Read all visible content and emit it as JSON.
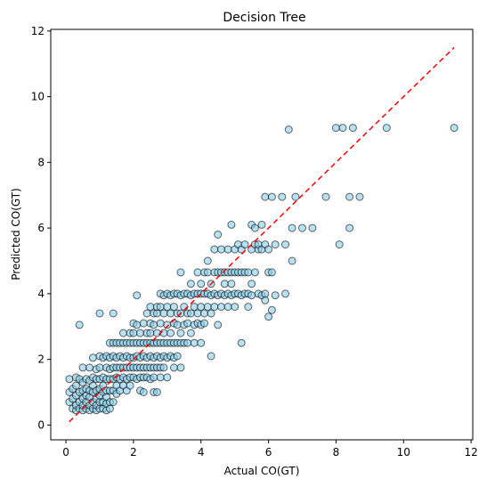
{
  "chart_data": {
    "type": "scatter",
    "title": "Decision Tree",
    "xlabel": "Actual CO(GT)",
    "ylabel": "Predicted CO(GT)",
    "xlim": [
      -0.45,
      12.05
    ],
    "ylim": [
      -0.45,
      12.05
    ],
    "xticks": [
      0,
      2,
      4,
      6,
      8,
      10,
      12
    ],
    "yticks": [
      0,
      2,
      4,
      6,
      8,
      10,
      12
    ],
    "grid": false,
    "legend": "none",
    "point_color": "#87ceeb",
    "point_edge_color": "#000000",
    "point_alpha": 0.6,
    "reference_line": {
      "x": [
        0.1,
        11.5
      ],
      "y": [
        0.1,
        11.5
      ],
      "color": "#ff0000",
      "style": "dashed"
    },
    "series": [
      {
        "points": [
          [
            0.1,
            0.7
          ],
          [
            0.1,
            1.0
          ],
          [
            0.1,
            1.4
          ],
          [
            0.2,
            0.5
          ],
          [
            0.2,
            0.8
          ],
          [
            0.2,
            1.1
          ],
          [
            0.3,
            0.45
          ],
          [
            0.3,
            0.6
          ],
          [
            0.3,
            0.9
          ],
          [
            0.3,
            1.2
          ],
          [
            0.3,
            1.45
          ],
          [
            0.4,
            0.5
          ],
          [
            0.4,
            0.7
          ],
          [
            0.4,
            1.0
          ],
          [
            0.4,
            1.4
          ],
          [
            0.4,
            3.05
          ],
          [
            0.5,
            0.45
          ],
          [
            0.5,
            0.6
          ],
          [
            0.5,
            0.8
          ],
          [
            0.5,
            1.05
          ],
          [
            0.5,
            1.3
          ],
          [
            0.5,
            1.75
          ],
          [
            0.6,
            0.5
          ],
          [
            0.6,
            0.7
          ],
          [
            0.6,
            0.9
          ],
          [
            0.6,
            1.1
          ],
          [
            0.6,
            1.4
          ],
          [
            0.7,
            0.45
          ],
          [
            0.7,
            0.6
          ],
          [
            0.7,
            0.85
          ],
          [
            0.7,
            1.05
          ],
          [
            0.7,
            1.35
          ],
          [
            0.7,
            1.75
          ],
          [
            0.8,
            0.5
          ],
          [
            0.8,
            0.7
          ],
          [
            0.8,
            1.0
          ],
          [
            0.8,
            1.2
          ],
          [
            0.8,
            1.45
          ],
          [
            0.8,
            2.05
          ],
          [
            0.9,
            0.45
          ],
          [
            0.9,
            0.6
          ],
          [
            0.9,
            0.8
          ],
          [
            0.9,
            1.05
          ],
          [
            0.9,
            1.4
          ],
          [
            0.9,
            1.7
          ],
          [
            1.0,
            0.5
          ],
          [
            1.0,
            0.7
          ],
          [
            1.0,
            0.9
          ],
          [
            1.0,
            1.1
          ],
          [
            1.0,
            1.4
          ],
          [
            1.0,
            1.75
          ],
          [
            1.0,
            2.1
          ],
          [
            1.0,
            3.4
          ],
          [
            1.1,
            0.5
          ],
          [
            1.1,
            0.7
          ],
          [
            1.1,
            1.0
          ],
          [
            1.1,
            1.2
          ],
          [
            1.1,
            1.45
          ],
          [
            1.1,
            2.05
          ],
          [
            1.2,
            0.45
          ],
          [
            1.2,
            0.65
          ],
          [
            1.2,
            0.85
          ],
          [
            1.2,
            1.05
          ],
          [
            1.2,
            1.4
          ],
          [
            1.2,
            1.75
          ],
          [
            1.2,
            2.1
          ],
          [
            1.3,
            0.5
          ],
          [
            1.3,
            0.7
          ],
          [
            1.3,
            1.05
          ],
          [
            1.3,
            1.4
          ],
          [
            1.3,
            1.7
          ],
          [
            1.3,
            2.05
          ],
          [
            1.3,
            2.5
          ],
          [
            1.4,
            0.7
          ],
          [
            1.4,
            1.05
          ],
          [
            1.4,
            1.4
          ],
          [
            1.4,
            1.75
          ],
          [
            1.4,
            2.1
          ],
          [
            1.4,
            2.5
          ],
          [
            1.4,
            3.4
          ],
          [
            1.5,
            0.95
          ],
          [
            1.5,
            1.2
          ],
          [
            1.5,
            1.45
          ],
          [
            1.5,
            1.75
          ],
          [
            1.5,
            2.05
          ],
          [
            1.5,
            2.5
          ],
          [
            1.6,
            1.05
          ],
          [
            1.6,
            1.4
          ],
          [
            1.6,
            1.75
          ],
          [
            1.6,
            2.1
          ],
          [
            1.6,
            2.5
          ],
          [
            1.7,
            1.2
          ],
          [
            1.7,
            1.45
          ],
          [
            1.7,
            1.75
          ],
          [
            1.7,
            2.05
          ],
          [
            1.7,
            2.5
          ],
          [
            1.7,
            2.8
          ],
          [
            1.8,
            1.05
          ],
          [
            1.8,
            1.4
          ],
          [
            1.8,
            1.75
          ],
          [
            1.8,
            2.1
          ],
          [
            1.8,
            2.5
          ],
          [
            1.9,
            1.2
          ],
          [
            1.9,
            1.45
          ],
          [
            1.9,
            1.75
          ],
          [
            1.9,
            2.05
          ],
          [
            1.9,
            2.5
          ],
          [
            1.9,
            2.8
          ],
          [
            2.0,
            1.45
          ],
          [
            2.0,
            1.75
          ],
          [
            2.0,
            2.05
          ],
          [
            2.0,
            2.5
          ],
          [
            2.0,
            2.8
          ],
          [
            2.0,
            3.1
          ],
          [
            2.1,
            1.4
          ],
          [
            2.1,
            1.75
          ],
          [
            2.1,
            2.1
          ],
          [
            2.1,
            2.5
          ],
          [
            2.1,
            3.05
          ],
          [
            2.1,
            3.95
          ],
          [
            2.2,
            1.05
          ],
          [
            2.2,
            1.45
          ],
          [
            2.2,
            1.75
          ],
          [
            2.2,
            2.05
          ],
          [
            2.2,
            2.5
          ],
          [
            2.2,
            2.8
          ],
          [
            2.3,
            1.0
          ],
          [
            2.3,
            1.45
          ],
          [
            2.3,
            1.75
          ],
          [
            2.3,
            2.1
          ],
          [
            2.3,
            2.5
          ],
          [
            2.3,
            3.1
          ],
          [
            2.4,
            1.45
          ],
          [
            2.4,
            1.75
          ],
          [
            2.4,
            2.05
          ],
          [
            2.4,
            2.5
          ],
          [
            2.4,
            2.8
          ],
          [
            2.4,
            3.4
          ],
          [
            2.5,
            1.4
          ],
          [
            2.5,
            1.75
          ],
          [
            2.5,
            2.1
          ],
          [
            2.5,
            2.5
          ],
          [
            2.5,
            2.8
          ],
          [
            2.5,
            3.1
          ],
          [
            2.5,
            3.6
          ],
          [
            2.6,
            1.0
          ],
          [
            2.6,
            1.45
          ],
          [
            2.6,
            1.75
          ],
          [
            2.6,
            2.05
          ],
          [
            2.6,
            2.5
          ],
          [
            2.6,
            3.05
          ],
          [
            2.6,
            3.4
          ],
          [
            2.7,
            1.0
          ],
          [
            2.7,
            1.75
          ],
          [
            2.7,
            2.1
          ],
          [
            2.7,
            2.5
          ],
          [
            2.7,
            2.8
          ],
          [
            2.7,
            3.4
          ],
          [
            2.7,
            3.6
          ],
          [
            2.8,
            1.45
          ],
          [
            2.8,
            1.75
          ],
          [
            2.8,
            2.05
          ],
          [
            2.8,
            2.5
          ],
          [
            2.8,
            3.1
          ],
          [
            2.8,
            3.6
          ],
          [
            2.8,
            4.0
          ],
          [
            2.9,
            1.75
          ],
          [
            2.9,
            2.1
          ],
          [
            2.9,
            2.5
          ],
          [
            2.9,
            2.8
          ],
          [
            2.9,
            3.4
          ],
          [
            2.9,
            3.95
          ],
          [
            3.0,
            1.45
          ],
          [
            3.0,
            2.05
          ],
          [
            3.0,
            2.5
          ],
          [
            3.0,
            3.05
          ],
          [
            3.0,
            3.6
          ],
          [
            3.0,
            4.0
          ],
          [
            3.1,
            2.1
          ],
          [
            3.1,
            2.5
          ],
          [
            3.1,
            2.8
          ],
          [
            3.1,
            3.4
          ],
          [
            3.1,
            3.95
          ],
          [
            3.2,
            1.75
          ],
          [
            3.2,
            2.05
          ],
          [
            3.2,
            2.5
          ],
          [
            3.2,
            3.1
          ],
          [
            3.2,
            3.6
          ],
          [
            3.2,
            4.0
          ],
          [
            3.3,
            2.1
          ],
          [
            3.3,
            2.5
          ],
          [
            3.3,
            3.05
          ],
          [
            3.3,
            3.4
          ],
          [
            3.3,
            4.0
          ],
          [
            3.4,
            1.75
          ],
          [
            3.4,
            2.5
          ],
          [
            3.4,
            2.8
          ],
          [
            3.4,
            3.4
          ],
          [
            3.4,
            3.95
          ],
          [
            3.4,
            4.65
          ],
          [
            3.5,
            2.5
          ],
          [
            3.5,
            3.05
          ],
          [
            3.5,
            3.6
          ],
          [
            3.5,
            4.0
          ],
          [
            3.6,
            2.5
          ],
          [
            3.6,
            3.1
          ],
          [
            3.6,
            3.4
          ],
          [
            3.6,
            4.0
          ],
          [
            3.7,
            2.8
          ],
          [
            3.7,
            3.4
          ],
          [
            3.7,
            3.95
          ],
          [
            3.7,
            4.3
          ],
          [
            3.8,
            2.5
          ],
          [
            3.8,
            3.05
          ],
          [
            3.8,
            3.6
          ],
          [
            3.8,
            4.0
          ],
          [
            3.9,
            3.1
          ],
          [
            3.9,
            3.4
          ],
          [
            3.9,
            4.0
          ],
          [
            3.9,
            4.65
          ],
          [
            4.0,
            2.5
          ],
          [
            4.0,
            3.05
          ],
          [
            4.0,
            3.6
          ],
          [
            4.0,
            4.0
          ],
          [
            4.0,
            4.3
          ],
          [
            4.1,
            3.1
          ],
          [
            4.1,
            3.4
          ],
          [
            4.1,
            4.0
          ],
          [
            4.1,
            4.65
          ],
          [
            4.2,
            3.6
          ],
          [
            4.2,
            4.0
          ],
          [
            4.2,
            4.65
          ],
          [
            4.2,
            5.0
          ],
          [
            4.3,
            2.1
          ],
          [
            4.3,
            3.4
          ],
          [
            4.3,
            3.95
          ],
          [
            4.3,
            4.3
          ],
          [
            4.4,
            3.6
          ],
          [
            4.4,
            4.0
          ],
          [
            4.4,
            4.65
          ],
          [
            4.4,
            5.35
          ],
          [
            4.5,
            3.05
          ],
          [
            4.5,
            3.95
          ],
          [
            4.5,
            4.65
          ],
          [
            4.5,
            5.8
          ],
          [
            4.6,
            3.6
          ],
          [
            4.6,
            4.0
          ],
          [
            4.6,
            4.65
          ],
          [
            4.6,
            5.35
          ],
          [
            4.7,
            3.95
          ],
          [
            4.7,
            4.3
          ],
          [
            4.7,
            4.65
          ],
          [
            4.8,
            3.6
          ],
          [
            4.8,
            4.0
          ],
          [
            4.8,
            4.65
          ],
          [
            4.8,
            5.35
          ],
          [
            4.9,
            3.95
          ],
          [
            4.9,
            4.3
          ],
          [
            4.9,
            4.65
          ],
          [
            4.9,
            6.1
          ],
          [
            5.0,
            3.6
          ],
          [
            5.0,
            4.0
          ],
          [
            5.0,
            4.65
          ],
          [
            5.0,
            5.35
          ],
          [
            5.1,
            4.0
          ],
          [
            5.1,
            4.65
          ],
          [
            5.1,
            5.5
          ],
          [
            5.2,
            2.5
          ],
          [
            5.2,
            3.95
          ],
          [
            5.2,
            4.65
          ],
          [
            5.2,
            5.35
          ],
          [
            5.3,
            4.0
          ],
          [
            5.3,
            4.65
          ],
          [
            5.3,
            5.5
          ],
          [
            5.4,
            3.6
          ],
          [
            5.4,
            4.0
          ],
          [
            5.4,
            4.65
          ],
          [
            5.5,
            3.95
          ],
          [
            5.5,
            4.3
          ],
          [
            5.5,
            5.35
          ],
          [
            5.5,
            6.1
          ],
          [
            5.6,
            4.65
          ],
          [
            5.6,
            5.5
          ],
          [
            5.6,
            6.0
          ],
          [
            5.7,
            4.0
          ],
          [
            5.7,
            5.35
          ],
          [
            5.7,
            5.5
          ],
          [
            5.8,
            3.95
          ],
          [
            5.8,
            5.35
          ],
          [
            5.8,
            6.1
          ],
          [
            5.9,
            3.8
          ],
          [
            5.9,
            4.0
          ],
          [
            5.9,
            5.5
          ],
          [
            5.9,
            6.95
          ],
          [
            6.0,
            3.3
          ],
          [
            6.0,
            4.65
          ],
          [
            6.0,
            5.35
          ],
          [
            6.1,
            3.5
          ],
          [
            6.1,
            4.65
          ],
          [
            6.1,
            6.95
          ],
          [
            6.2,
            3.95
          ],
          [
            6.2,
            5.5
          ],
          [
            6.4,
            6.95
          ],
          [
            6.5,
            4.0
          ],
          [
            6.5,
            5.5
          ],
          [
            6.6,
            9.0
          ],
          [
            6.7,
            5.0
          ],
          [
            6.7,
            6.0
          ],
          [
            6.8,
            6.95
          ],
          [
            7.0,
            6.0
          ],
          [
            7.3,
            6.0
          ],
          [
            7.7,
            6.95
          ],
          [
            8.0,
            9.05
          ],
          [
            8.1,
            5.5
          ],
          [
            8.2,
            9.05
          ],
          [
            8.4,
            6.0
          ],
          [
            8.4,
            6.95
          ],
          [
            8.5,
            9.05
          ],
          [
            8.7,
            6.95
          ],
          [
            9.5,
            9.05
          ],
          [
            11.5,
            9.05
          ]
        ]
      }
    ]
  }
}
